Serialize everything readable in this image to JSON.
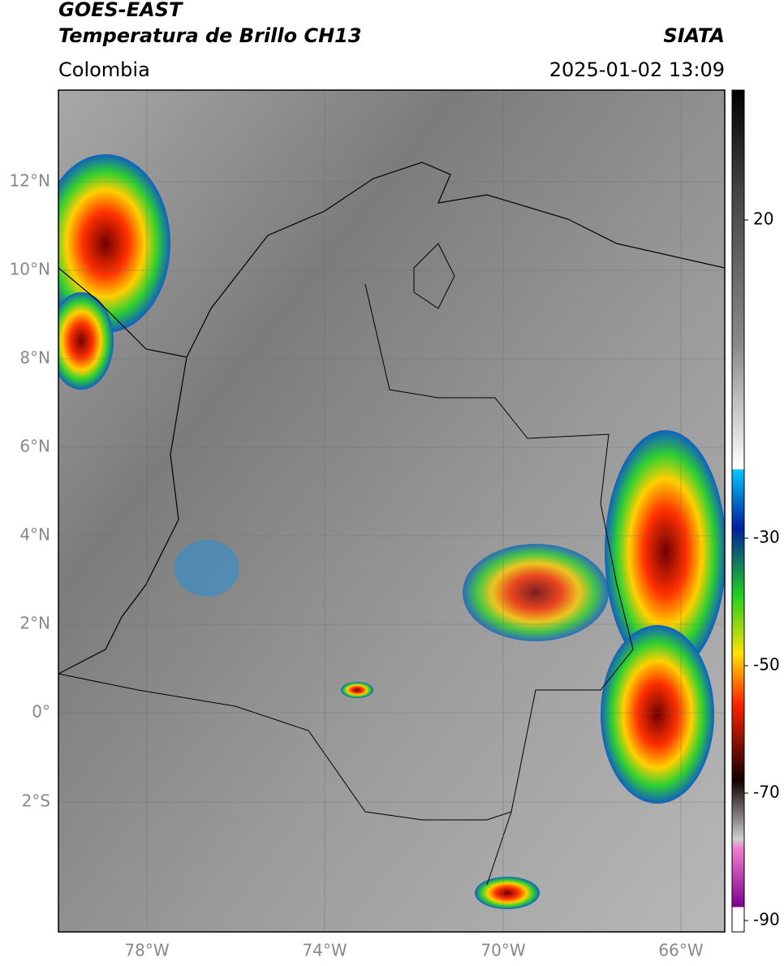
{
  "header": {
    "title": "GOES-EAST",
    "subtitle": "Temperatura de Brillo CH13",
    "source": "SIATA",
    "region": "Colombia",
    "datetime": "2025-01-02 13:09"
  },
  "map": {
    "lat_labels": [
      "12°N",
      "10°N",
      "8°N",
      "6°N",
      "4°N",
      "2°N",
      "0°",
      "2°S"
    ],
    "lon_labels": [
      "78°W",
      "74°W",
      "70°W",
      "66°W"
    ]
  },
  "colorbar": {
    "tick_labels": [
      "20",
      "-30",
      "-50",
      "-70",
      "-90"
    ]
  }
}
